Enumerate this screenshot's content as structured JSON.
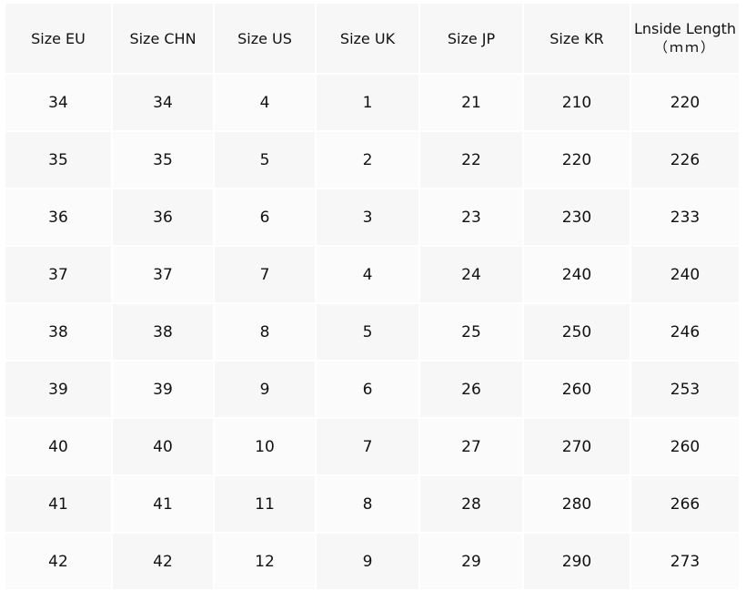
{
  "table": {
    "header": [
      "Size EU",
      "Size CHN",
      "Size US",
      "Size UK",
      "Size JP",
      "Size KR",
      "Lnside Length"
    ],
    "header_unit": "（ｍｍ）",
    "rows": [
      [
        34,
        34,
        4,
        1,
        21,
        210,
        220
      ],
      [
        35,
        35,
        5,
        2,
        22,
        220,
        226
      ],
      [
        36,
        36,
        6,
        3,
        23,
        230,
        233
      ],
      [
        37,
        37,
        7,
        4,
        24,
        240,
        240
      ],
      [
        38,
        38,
        8,
        5,
        25,
        250,
        246
      ],
      [
        39,
        39,
        9,
        6,
        26,
        260,
        253
      ],
      [
        40,
        40,
        10,
        7,
        27,
        270,
        260
      ],
      [
        41,
        41,
        11,
        8,
        28,
        280,
        266
      ],
      [
        42,
        42,
        12,
        9,
        29,
        290,
        273
      ]
    ]
  }
}
